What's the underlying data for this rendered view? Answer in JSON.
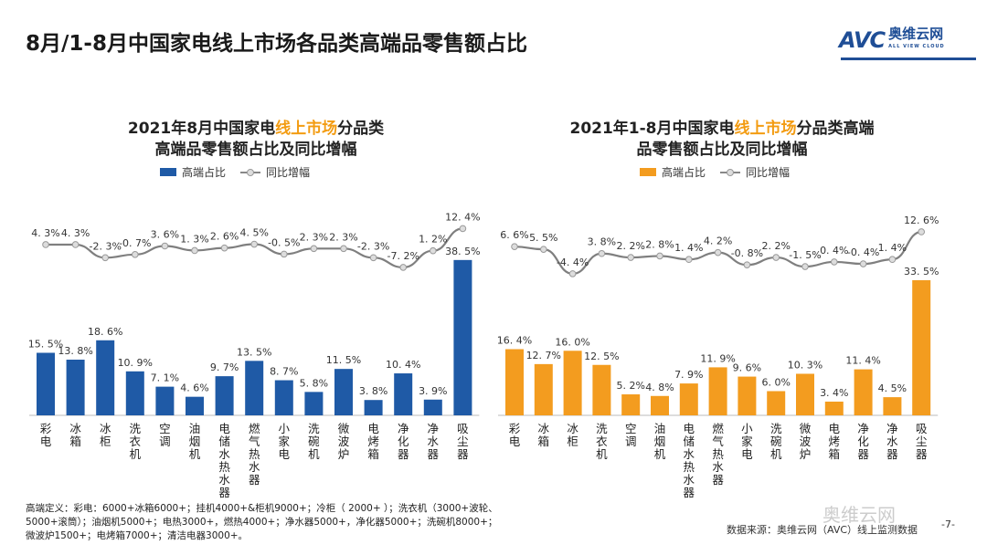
{
  "header": {
    "title": "8月/1-8月中国家电线上市场各品类高端品零售额占比",
    "logo_mark": "AVC",
    "logo_cn": "奥维云网",
    "logo_en": "ALL VIEW CLOUD"
  },
  "chart_data": [
    {
      "type": "bar+line",
      "title_line1_a": "2021年8月中国家电",
      "title_line1_hl": "线上市场",
      "title_line1_b": "分品类",
      "title_line2": "高端品零售额占比及同比增幅",
      "legend": {
        "bar": "高端占比",
        "line": "同比增幅"
      },
      "bar_color": "#1f5aa6",
      "categories": [
        "彩电",
        "冰箱",
        "冰柜",
        "洗衣机",
        "空调",
        "油烟机",
        "电储水热水器",
        "燃气热水器",
        "小家电",
        "洗碗机",
        "微波炉",
        "电烤箱",
        "净化器",
        "净水器",
        "吸尘器"
      ],
      "series": [
        {
          "name": "高端占比",
          "unit": "%",
          "values": [
            15.5,
            13.8,
            18.6,
            10.9,
            7.1,
            4.6,
            9.7,
            13.5,
            8.7,
            5.8,
            11.5,
            3.8,
            10.4,
            3.9,
            38.5
          ]
        },
        {
          "name": "同比增幅",
          "unit": "%",
          "values": [
            4.3,
            4.3,
            -2.3,
            -0.7,
            3.6,
            1.3,
            2.6,
            4.5,
            -0.5,
            2.3,
            2.3,
            -2.3,
            -7.2,
            1.2,
            12.4
          ]
        }
      ]
    },
    {
      "type": "bar+line",
      "title_line1_a": "2021年1-8月中国家电",
      "title_line1_hl": "线上市场",
      "title_line1_b": "分品类高端",
      "title_line2": "品零售额占比及同比增幅",
      "legend": {
        "bar": "高端占比",
        "line": "同比增幅"
      },
      "bar_color": "#f39c1f",
      "categories": [
        "彩电",
        "冰箱",
        "冰柜",
        "洗衣机",
        "空调",
        "油烟机",
        "电储水热水器",
        "燃气热水器",
        "小家电",
        "洗碗机",
        "微波炉",
        "电烤箱",
        "净化器",
        "净水器",
        "吸尘器"
      ],
      "series": [
        {
          "name": "高端占比",
          "unit": "%",
          "values": [
            16.4,
            12.7,
            16.0,
            12.5,
            5.2,
            4.8,
            7.9,
            11.9,
            9.6,
            6.0,
            10.3,
            3.4,
            11.4,
            4.5,
            33.5
          ]
        },
        {
          "name": "同比增幅",
          "unit": "%",
          "values": [
            6.6,
            5.5,
            -4.4,
            3.8,
            2.2,
            2.8,
            1.4,
            4.2,
            -0.8,
            2.2,
            -1.5,
            0.4,
            -0.4,
            1.4,
            12.6
          ]
        }
      ]
    }
  ],
  "footnote": "高端定义：彩电：6000+冰箱6000+；挂机4000+&柜机9000+；冷柜（ 2000+ ）；洗衣机（3000+波轮、5000+滚筒）；油烟机5000+；电热3000+，燃热4000+；净水器5000+，净化器5000+；洗碗机8000+；微波炉1500+；电烤箱7000+；清洁电器3000+。",
  "source": "数据来源：奥维云网（AVC）线上监测数据",
  "watermark": "奥维云网",
  "page_number": "-7-"
}
